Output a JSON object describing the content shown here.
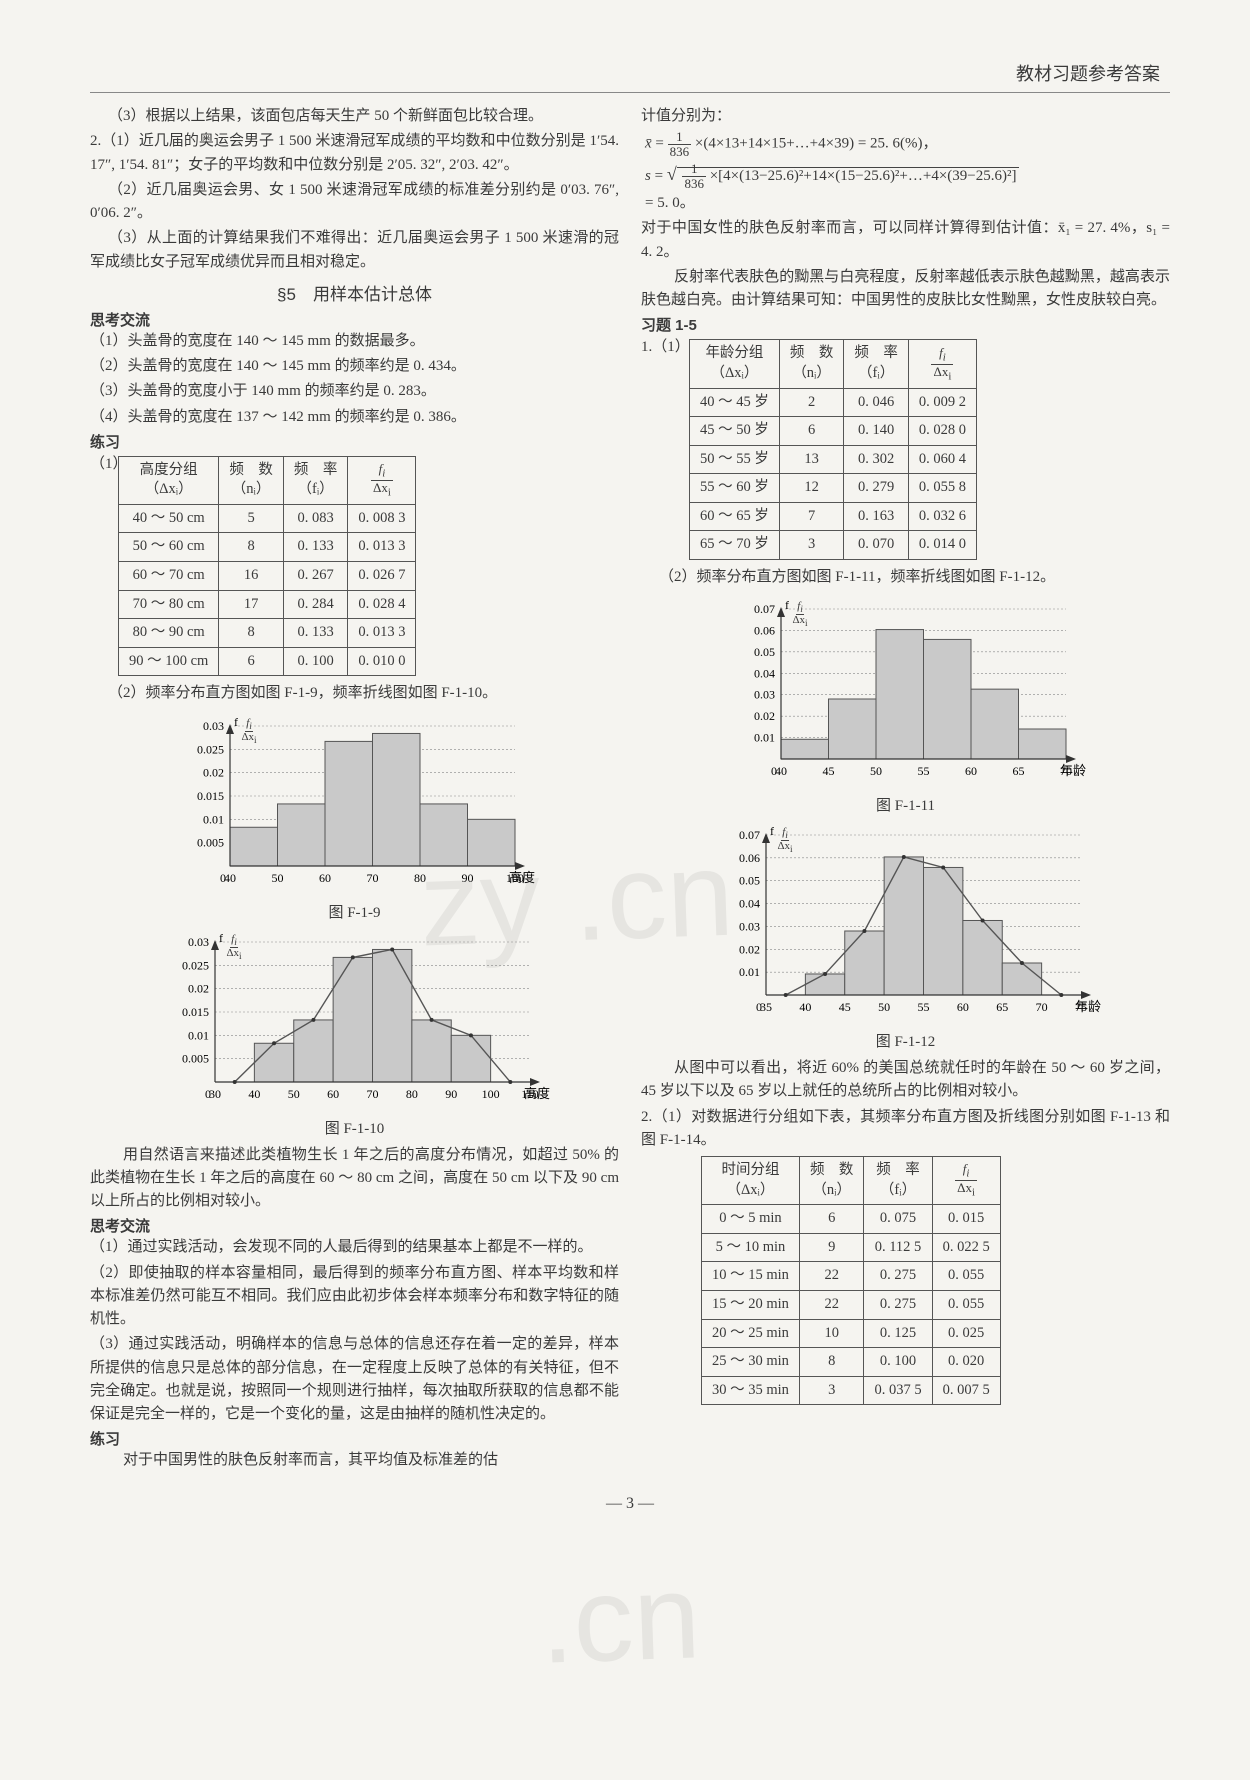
{
  "header": {
    "title": "教材习题参考答案"
  },
  "left": {
    "p_1_3": "（3）根据以上结果，该面包店每天生产 50 个新鲜面包比较合理。",
    "p_2_1": "2.（1）近几届的奥运会男子 1 500 米速滑冠军成绩的平均数和中位数分别是 1′54. 17″, 1′54. 81″；女子的平均数和中位数分别是 2′05. 32″, 2′03. 42″。",
    "p_2_2": "（2）近几届奥运会男、女 1 500 米速滑冠军成绩的标准差分别约是 0′03. 76″, 0′06. 2″。",
    "p_2_3": "（3）从上面的计算结果我们不难得出：近几届奥运会男子 1 500 米速滑的冠军成绩比女子冠军成绩优异而且相对稳定。",
    "section5": "§5　用样本估计总体",
    "skjl": "思考交流",
    "sk1": "（1）头盖骨的宽度在 140 ～ 145 mm 的数据最多。",
    "sk2": "（2）头盖骨的宽度在 140 ～ 145 mm 的频率约是 0. 434。",
    "sk3": "（3）头盖骨的宽度小于 140 mm 的频率约是 0. 283。",
    "sk4": "（4）头盖骨的宽度在 137 ～ 142 mm 的频率约是 0. 386。",
    "lianxi": "练习",
    "t1_label": "（1）",
    "table1": {
      "headers": [
        "高度分组\n（Δxᵢ）",
        "频　数\n（nᵢ）",
        "频　率\n（fᵢ）",
        "fᵢ / Δxᵢ"
      ],
      "rows": [
        [
          "40 ～ 50 cm",
          "5",
          "0. 083",
          "0. 008 3"
        ],
        [
          "50 ～ 60 cm",
          "8",
          "0. 133",
          "0. 013 3"
        ],
        [
          "60 ～ 70 cm",
          "16",
          "0. 267",
          "0. 026 7"
        ],
        [
          "70 ～ 80 cm",
          "17",
          "0. 284",
          "0. 028 4"
        ],
        [
          "80 ～ 90 cm",
          "8",
          "0. 133",
          "0. 013 3"
        ],
        [
          "90 ～ 100 cm",
          "6",
          "0. 100",
          "0. 010 0"
        ]
      ]
    },
    "p_hist1": "（2）频率分布直方图如图 F-1-9，频率折线图如图 F-1-10。",
    "chart1": {
      "type": "histogram",
      "xticks": [
        40,
        50,
        60,
        70,
        80,
        90,
        100
      ],
      "yticks": [
        0.005,
        0.01,
        0.015,
        0.02,
        0.025,
        0.03
      ],
      "values": [
        0.0083,
        0.0133,
        0.0267,
        0.0284,
        0.0133,
        0.01
      ],
      "bar_color": "#c9c9c9",
      "border": "#555",
      "xlabel": "高度/cm",
      "ylabel": "fᵢ/Δxᵢ",
      "caption": "图 F-1-9"
    },
    "chart2": {
      "type": "histogram+line",
      "xticks": [
        30,
        40,
        50,
        60,
        70,
        80,
        90,
        100,
        110
      ],
      "yticks": [
        0.005,
        0.01,
        0.015,
        0.02,
        0.025,
        0.03
      ],
      "values": [
        0,
        0.0083,
        0.0133,
        0.0267,
        0.0284,
        0.0133,
        0.01,
        0
      ],
      "bar_color": "#c9c9c9",
      "line_color": "#555",
      "xlabel": "高度/cm",
      "ylabel": "fᵢ/Δxᵢ",
      "caption": "图 F-1-10"
    },
    "after_charts": "用自然语言来描述此类植物生长 1 年之后的高度分布情况，如超过 50% 的此类植物在生长 1 年之后的高度在 60 ～ 80 cm 之间，高度在 50 cm 以下及 90 cm 以上所占的比例相对较小。",
    "skjl2": "思考交流",
    "sk2_1": "（1）通过实践活动，会发现不同的人最后得到的结果基本上都是不一样的。",
    "sk2_2": "（2）即使抽取的样本容量相同，最后得到的频率分布直方图、样本平均数和样本标准差仍然可能互不相同。我们应由此初步体会样本频率分布和数字特征的随机性。",
    "sk2_3": "（3）通过实践活动，明确样本的信息与总体的信息还存在着一定的差异，样本所提供的信息只是总体的部分信息，在一定程度上反映了总体的有关特征，但不完全确定。也就是说，按照同一个规则进行抽样，每次抽取所获取的信息都不能保证是完全一样的，它是一个变化的量，这是由抽样的随机性决定的。",
    "lianxi2": "练习",
    "lx2_text": "对于中国男性的肤色反射率而言，其平均值及标准差的估"
  },
  "right": {
    "top1": "计值分别为：",
    "top_eq1": "x̄ = 1/836 ×(4×13+14×15+…+4×39) = 25. 6(%)，",
    "top_eq2": "s = √{ 1/836 ×[4×(13−25.6)²+14×(15−25.6)²+…+4×(39−25.6)²] } = 5. 0。",
    "top2": "对于中国女性的肤色反射率而言，可以同样计算得到估计值：x̄₁ = 27. 4%，s₁ = 4. 2。",
    "top3": "反射率代表肤色的黝黑与白亮程度，反射率越低表示肤色越黝黑，越高表示肤色越白亮。由计算结果可知：中国男性的皮肤比女性黝黑，女性皮肤较白亮。",
    "xiti": "习题 1-5",
    "q1": "1.（1）",
    "table2": {
      "headers": [
        "年龄分组\n（Δxᵢ）",
        "频　数\n（nᵢ）",
        "频　率\n（fᵢ）",
        "fᵢ / Δxᵢ"
      ],
      "rows": [
        [
          "40 ～ 45 岁",
          "2",
          "0. 046",
          "0. 009 2"
        ],
        [
          "45 ～ 50 岁",
          "6",
          "0. 140",
          "0. 028 0"
        ],
        [
          "50 ～ 55 岁",
          "13",
          "0. 302",
          "0. 060 4"
        ],
        [
          "55 ～ 60 岁",
          "12",
          "0. 279",
          "0. 055 8"
        ],
        [
          "60 ～ 65 岁",
          "7",
          "0. 163",
          "0. 032 6"
        ],
        [
          "65 ～ 70 岁",
          "3",
          "0. 070",
          "0. 014 0"
        ]
      ]
    },
    "p_hist2": "（2）频率分布直方图如图 F-1-11，频率折线图如图 F-1-12。",
    "chart3": {
      "type": "histogram",
      "xticks": [
        40,
        45,
        50,
        55,
        60,
        65,
        70
      ],
      "yticks": [
        0.01,
        0.02,
        0.03,
        0.04,
        0.05,
        0.06,
        0.07
      ],
      "values": [
        0.0092,
        0.028,
        0.0604,
        0.0558,
        0.0326,
        0.014
      ],
      "bar_color": "#c9c9c9",
      "xlabel": "年龄/岁",
      "ylabel": "fᵢ/Δxᵢ",
      "caption": "图 F-1-11"
    },
    "chart4": {
      "type": "histogram+line",
      "xticks": [
        35,
        40,
        45,
        50,
        55,
        60,
        65,
        70,
        75
      ],
      "yticks": [
        0.01,
        0.02,
        0.03,
        0.04,
        0.05,
        0.06,
        0.07
      ],
      "values": [
        0,
        0.0092,
        0.028,
        0.0604,
        0.0558,
        0.0326,
        0.014,
        0
      ],
      "bar_color": "#c9c9c9",
      "line_color": "#555",
      "xlabel": "年龄/岁",
      "ylabel": "fᵢ/Δxᵢ",
      "caption": "图 F-1-12"
    },
    "after_charts2": "从图中可以看出，将近 60% 的美国总统就任时的年龄在 50 ～ 60 岁之间，45 岁以下以及 65 岁以上就任的总统所占的比例相对较小。",
    "q2": "2.（1）对数据进行分组如下表，其频率分布直方图及折线图分别如图 F-1-13 和图 F-1-14。",
    "table3": {
      "headers": [
        "时间分组\n（Δxᵢ）",
        "频　数\n（nᵢ）",
        "频　率\n（fᵢ）",
        "fᵢ / Δxᵢ"
      ],
      "rows": [
        [
          "0 ～ 5 min",
          "6",
          "0. 075",
          "0. 015"
        ],
        [
          "5 ～ 10 min",
          "9",
          "0. 112 5",
          "0. 022 5"
        ],
        [
          "10 ～ 15 min",
          "22",
          "0. 275",
          "0. 055"
        ],
        [
          "15 ～ 20 min",
          "22",
          "0. 275",
          "0. 055"
        ],
        [
          "20 ～ 25 min",
          "10",
          "0. 125",
          "0. 025"
        ],
        [
          "25 ～ 30 min",
          "8",
          "0. 100",
          "0. 020"
        ],
        [
          "30 ～ 35 min",
          "3",
          "0. 037 5",
          "0. 007 5"
        ]
      ]
    }
  },
  "footer": "— 3 —"
}
